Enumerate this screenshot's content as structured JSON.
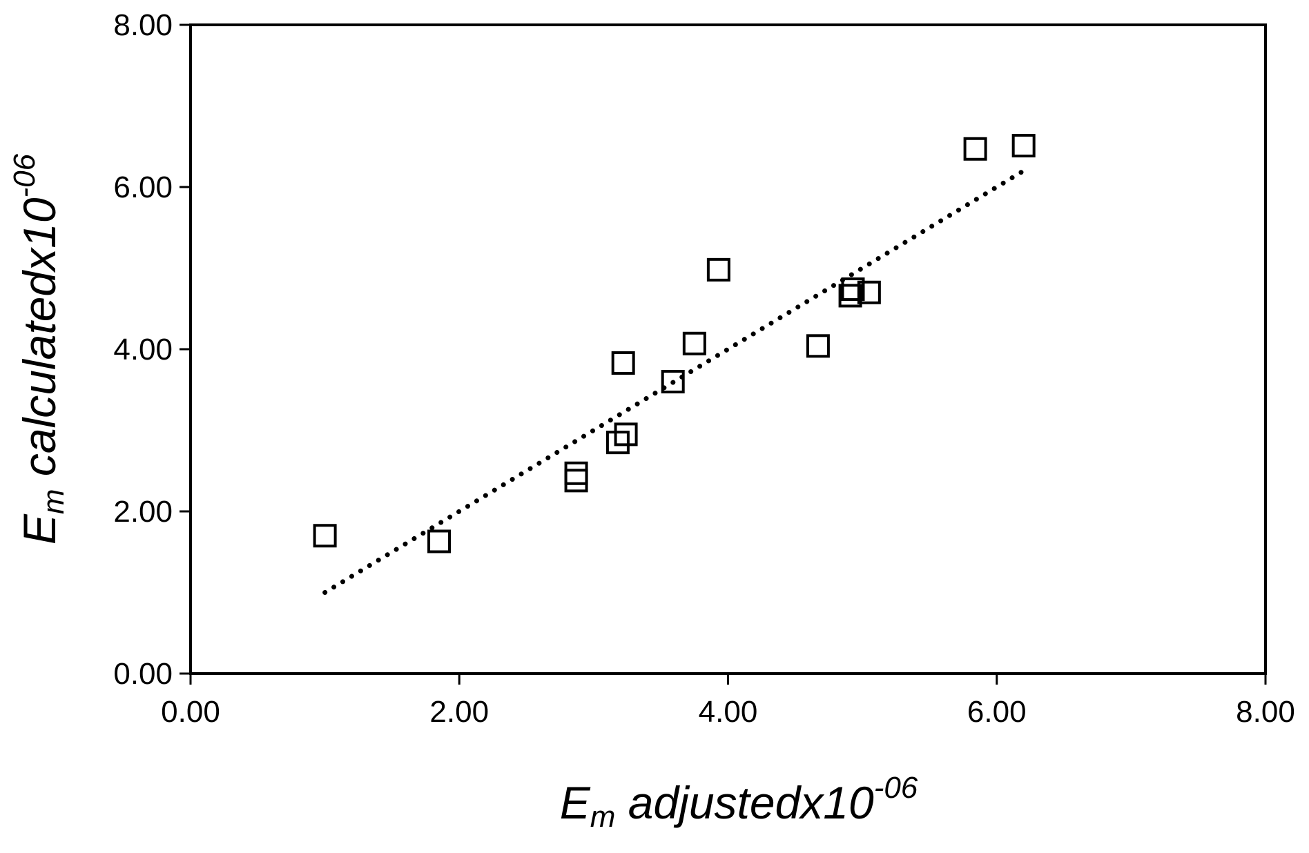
{
  "chart_data": {
    "type": "scatter",
    "title": "",
    "xlabel": {
      "symbol": "E",
      "subscript": "m",
      "text": " adjustedx10",
      "superscript": "-06"
    },
    "ylabel": {
      "symbol": "E",
      "subscript": "m",
      "text": " calculatedx10",
      "superscript": "-06"
    },
    "xlim": [
      0,
      8
    ],
    "ylim": [
      0,
      8
    ],
    "xticks": [
      "0.00",
      "2.00",
      "4.00",
      "6.00",
      "8.00"
    ],
    "yticks": [
      "0.00",
      "2.00",
      "4.00",
      "6.00",
      "8.00"
    ],
    "grid": false,
    "legend": "none",
    "marker": "open-square",
    "points": [
      {
        "x": 1.0,
        "y": 1.7
      },
      {
        "x": 1.85,
        "y": 1.63
      },
      {
        "x": 2.87,
        "y": 2.47
      },
      {
        "x": 2.87,
        "y": 2.38
      },
      {
        "x": 3.18,
        "y": 2.85
      },
      {
        "x": 3.24,
        "y": 2.95
      },
      {
        "x": 3.22,
        "y": 3.83
      },
      {
        "x": 3.59,
        "y": 3.6
      },
      {
        "x": 3.75,
        "y": 4.07
      },
      {
        "x": 3.93,
        "y": 4.98
      },
      {
        "x": 4.67,
        "y": 4.04
      },
      {
        "x": 4.91,
        "y": 4.66
      },
      {
        "x": 4.93,
        "y": 4.74
      },
      {
        "x": 5.05,
        "y": 4.7
      },
      {
        "x": 5.84,
        "y": 6.47
      },
      {
        "x": 6.2,
        "y": 6.51
      }
    ],
    "trendline": {
      "style": "dotted",
      "x": [
        1.0,
        6.2
      ],
      "y": [
        1.0,
        6.2
      ]
    }
  }
}
